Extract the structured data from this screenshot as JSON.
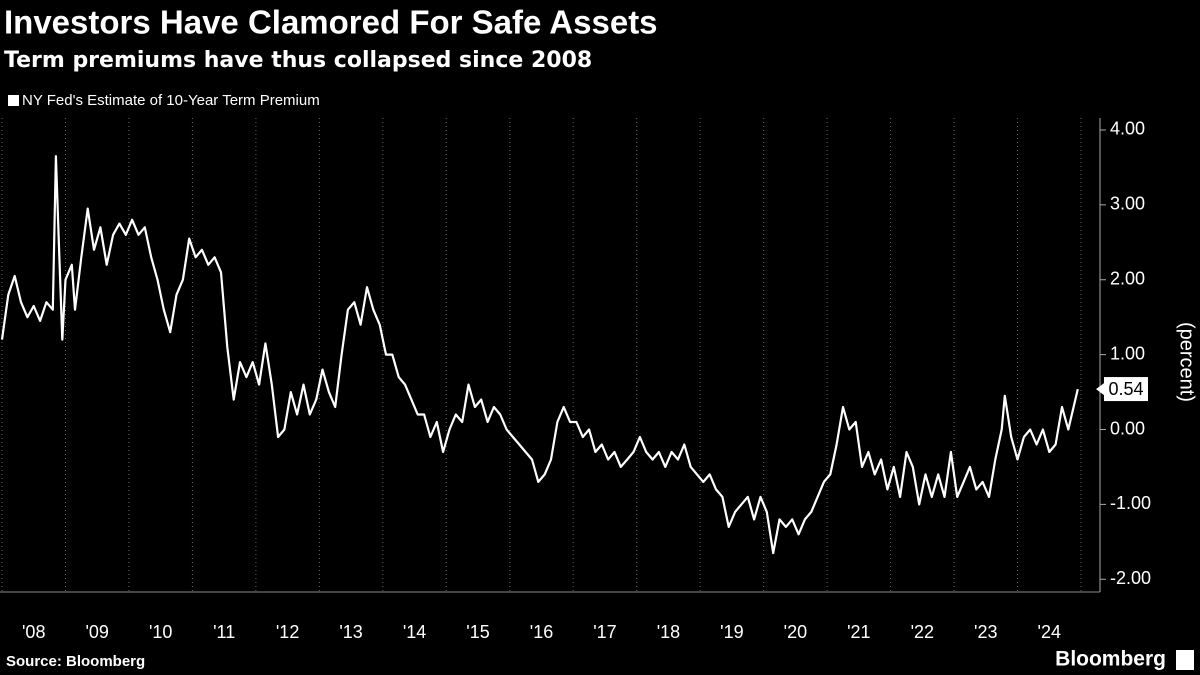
{
  "chart_data": {
    "type": "line",
    "title": "Investors Have Clamored For Safe Assets",
    "subtitle": "Term premiums have thus collapsed since 2008",
    "y_label": "(percent)",
    "source": "Source: Bloomberg",
    "logo": "Bloomberg",
    "grid": true,
    "x": [
      2008.0,
      2008.1,
      2008.2,
      2008.3,
      2008.4,
      2008.5,
      2008.6,
      2008.7,
      2008.8,
      2008.85,
      2008.9,
      2008.95,
      2009.0,
      2009.1,
      2009.15,
      2009.25,
      2009.35,
      2009.45,
      2009.55,
      2009.65,
      2009.75,
      2009.85,
      2009.95,
      2010.05,
      2010.15,
      2010.25,
      2010.35,
      2010.45,
      2010.55,
      2010.65,
      2010.75,
      2010.85,
      2010.95,
      2011.05,
      2011.15,
      2011.25,
      2011.35,
      2011.45,
      2011.55,
      2011.65,
      2011.75,
      2011.85,
      2011.95,
      2012.05,
      2012.15,
      2012.25,
      2012.35,
      2012.45,
      2012.55,
      2012.65,
      2012.75,
      2012.85,
      2012.95,
      2013.05,
      2013.15,
      2013.25,
      2013.35,
      2013.45,
      2013.55,
      2013.65,
      2013.75,
      2013.85,
      2013.95,
      2014.05,
      2014.15,
      2014.25,
      2014.35,
      2014.45,
      2014.55,
      2014.65,
      2014.75,
      2014.85,
      2014.95,
      2015.05,
      2015.15,
      2015.25,
      2015.35,
      2015.45,
      2015.55,
      2015.65,
      2015.75,
      2015.85,
      2015.95,
      2016.05,
      2016.15,
      2016.25,
      2016.35,
      2016.45,
      2016.55,
      2016.65,
      2016.75,
      2016.85,
      2016.95,
      2017.05,
      2017.15,
      2017.25,
      2017.35,
      2017.45,
      2017.55,
      2017.65,
      2017.75,
      2017.85,
      2017.95,
      2018.05,
      2018.15,
      2018.25,
      2018.35,
      2018.45,
      2018.55,
      2018.65,
      2018.75,
      2018.85,
      2018.95,
      2019.05,
      2019.15,
      2019.25,
      2019.35,
      2019.45,
      2019.55,
      2019.65,
      2019.75,
      2019.85,
      2019.95,
      2020.05,
      2020.15,
      2020.25,
      2020.35,
      2020.45,
      2020.55,
      2020.65,
      2020.75,
      2020.85,
      2020.95,
      2021.05,
      2021.15,
      2021.25,
      2021.35,
      2021.45,
      2021.55,
      2021.65,
      2021.75,
      2021.85,
      2021.95,
      2022.05,
      2022.15,
      2022.25,
      2022.35,
      2022.45,
      2022.55,
      2022.65,
      2022.75,
      2022.85,
      2022.95,
      2023.05,
      2023.15,
      2023.25,
      2023.35,
      2023.45,
      2023.55,
      2023.65,
      2023.75,
      2023.8,
      2023.9,
      2024.0,
      2024.1,
      2024.2,
      2024.3,
      2024.4,
      2024.5,
      2024.6,
      2024.7,
      2024.8,
      2024.95
    ],
    "series": [
      {
        "name": "NY Fed's Estimate of 10-Year Term Premium",
        "color": "#ffffff",
        "values": [
          1.2,
          1.8,
          2.05,
          1.7,
          1.5,
          1.65,
          1.45,
          1.7,
          1.6,
          3.65,
          2.4,
          1.2,
          2.0,
          2.2,
          1.6,
          2.3,
          2.95,
          2.4,
          2.7,
          2.2,
          2.6,
          2.75,
          2.6,
          2.8,
          2.6,
          2.7,
          2.3,
          2.0,
          1.6,
          1.3,
          1.8,
          2.0,
          2.55,
          2.3,
          2.4,
          2.2,
          2.3,
          2.1,
          1.1,
          0.4,
          0.9,
          0.7,
          0.9,
          0.6,
          1.15,
          0.6,
          -0.1,
          0.0,
          0.5,
          0.2,
          0.6,
          0.2,
          0.4,
          0.8,
          0.5,
          0.3,
          1.0,
          1.6,
          1.7,
          1.4,
          1.9,
          1.6,
          1.4,
          1.0,
          1.0,
          0.7,
          0.6,
          0.4,
          0.2,
          0.2,
          -0.1,
          0.1,
          -0.3,
          0.0,
          0.2,
          0.1,
          0.6,
          0.3,
          0.4,
          0.1,
          0.3,
          0.2,
          0.0,
          -0.1,
          -0.2,
          -0.3,
          -0.4,
          -0.7,
          -0.6,
          -0.4,
          0.1,
          0.3,
          0.1,
          0.1,
          -0.1,
          0.0,
          -0.3,
          -0.2,
          -0.4,
          -0.3,
          -0.5,
          -0.4,
          -0.3,
          -0.1,
          -0.3,
          -0.4,
          -0.3,
          -0.5,
          -0.3,
          -0.4,
          -0.2,
          -0.5,
          -0.6,
          -0.7,
          -0.6,
          -0.8,
          -0.9,
          -1.3,
          -1.1,
          -1.0,
          -0.9,
          -1.2,
          -0.9,
          -1.1,
          -1.65,
          -1.2,
          -1.3,
          -1.2,
          -1.4,
          -1.2,
          -1.1,
          -0.9,
          -0.7,
          -0.6,
          -0.2,
          0.3,
          0.0,
          0.1,
          -0.5,
          -0.3,
          -0.6,
          -0.4,
          -0.8,
          -0.5,
          -0.9,
          -0.3,
          -0.5,
          -1.0,
          -0.6,
          -0.9,
          -0.6,
          -0.9,
          -0.3,
          -0.9,
          -0.7,
          -0.5,
          -0.8,
          -0.7,
          -0.9,
          -0.4,
          0.0,
          0.45,
          -0.1,
          -0.4,
          -0.1,
          0.0,
          -0.2,
          0.0,
          -0.3,
          -0.2,
          0.3,
          0.0,
          0.54
        ]
      }
    ],
    "xlim": [
      2008,
      2025
    ],
    "xticks": [
      {
        "value": 2008,
        "label": "'08"
      },
      {
        "value": 2009,
        "label": "'09"
      },
      {
        "value": 2010,
        "label": "'10"
      },
      {
        "value": 2011,
        "label": "'11"
      },
      {
        "value": 2012,
        "label": "'12"
      },
      {
        "value": 2013,
        "label": "'13"
      },
      {
        "value": 2014,
        "label": "'14"
      },
      {
        "value": 2015,
        "label": "'15"
      },
      {
        "value": 2016,
        "label": "'16"
      },
      {
        "value": 2017,
        "label": "'17"
      },
      {
        "value": 2018,
        "label": "'18"
      },
      {
        "value": 2019,
        "label": "'19"
      },
      {
        "value": 2020,
        "label": "'20"
      },
      {
        "value": 2021,
        "label": "'21"
      },
      {
        "value": 2022,
        "label": "'22"
      },
      {
        "value": 2023,
        "label": "'23"
      },
      {
        "value": 2024,
        "label": "'24"
      }
    ],
    "ylim": [
      -2.17,
      4.16
    ],
    "yticks": [
      {
        "value": 4,
        "label": "4.00"
      },
      {
        "value": 3,
        "label": "3.00"
      },
      {
        "value": 2,
        "label": "2.00"
      },
      {
        "value": 1,
        "label": "1.00"
      },
      {
        "value": 0,
        "label": "0.00"
      },
      {
        "value": -1,
        "label": "-1.00"
      },
      {
        "value": -2,
        "label": "-2.00"
      }
    ]
  }
}
